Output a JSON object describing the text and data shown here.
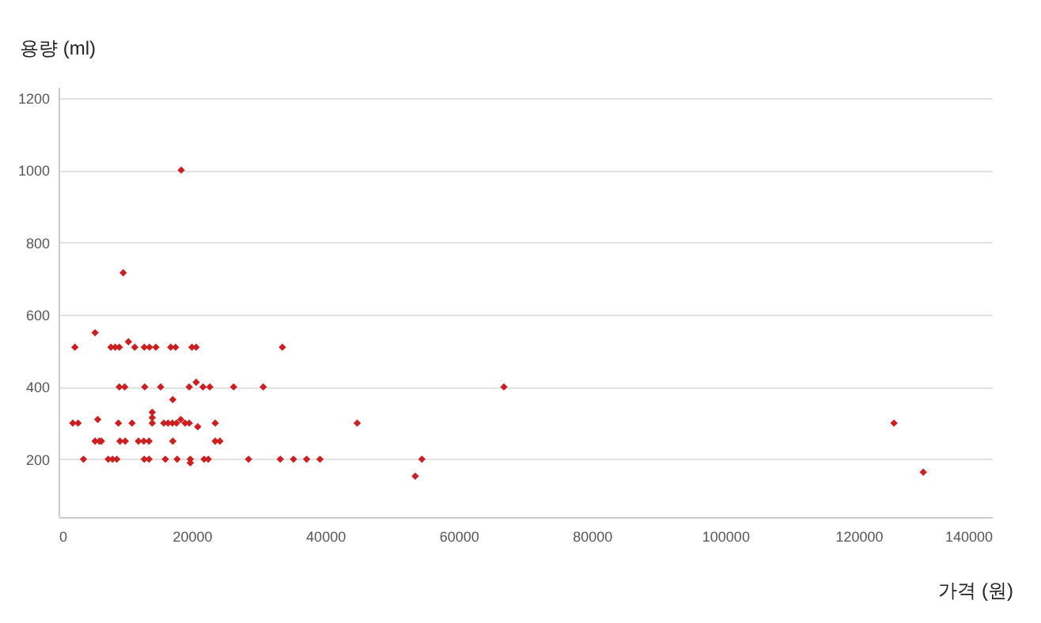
{
  "chart_data": {
    "type": "scatter",
    "xlabel": "가격 (원)",
    "ylabel": "용량 (ml)",
    "x": [
      2450,
      7860,
      8500,
      9120,
      10480,
      11430,
      12860,
      13640,
      14600,
      16830,
      17550,
      20000,
      20640,
      33570,
      5480,
      9120,
      9930,
      12930,
      15310,
      19600,
      20640,
      21670,
      22690,
      26260,
      30710,
      17140,
      2140,
      2930,
      5880,
      8980,
      11020,
      14050,
      14050,
      14050,
      15790,
      16430,
      17070,
      17690,
      18330,
      18980,
      19600,
      20880,
      23500,
      44800,
      5480,
      6120,
      6430,
      9210,
      10000,
      11980,
      12790,
      13570,
      17140,
      23500,
      24200,
      3740,
      7450,
      8100,
      8740,
      12860,
      13570,
      16020,
      17790,
      19760,
      19760,
      21830,
      22450,
      28500,
      33260,
      35240,
      37210,
      39210,
      9700,
      18400,
      53500,
      54500,
      66800,
      125300,
      129700
    ],
    "series": [
      {
        "color": "#cc1f1f",
        "values": [
          510,
          510,
          510,
          510,
          525,
          510,
          510,
          510,
          510,
          510,
          510,
          510,
          510,
          510,
          550,
          400,
          400,
          400,
          400,
          400,
          413,
          400,
          400,
          400,
          400,
          365,
          300,
          300,
          310,
          300,
          300,
          300,
          315,
          330,
          300,
          300,
          300,
          300,
          310,
          300,
          300,
          290,
          300,
          300,
          250,
          250,
          250,
          250,
          250,
          250,
          250,
          250,
          250,
          250,
          250,
          200,
          200,
          200,
          200,
          200,
          200,
          200,
          200,
          200,
          190,
          200,
          200,
          200,
          200,
          200,
          200,
          200,
          716,
          1000,
          153,
          200,
          400,
          300,
          164
        ]
      }
    ],
    "xlim": [
      0,
      140000
    ],
    "xticks": [
      0,
      20000,
      40000,
      60000,
      80000,
      100000,
      120000,
      140000
    ],
    "ylim": [
      40,
      1230
    ],
    "yticks": [
      200,
      400,
      600,
      800,
      1000,
      1200
    ],
    "grid": "y",
    "marker": "diamond"
  }
}
